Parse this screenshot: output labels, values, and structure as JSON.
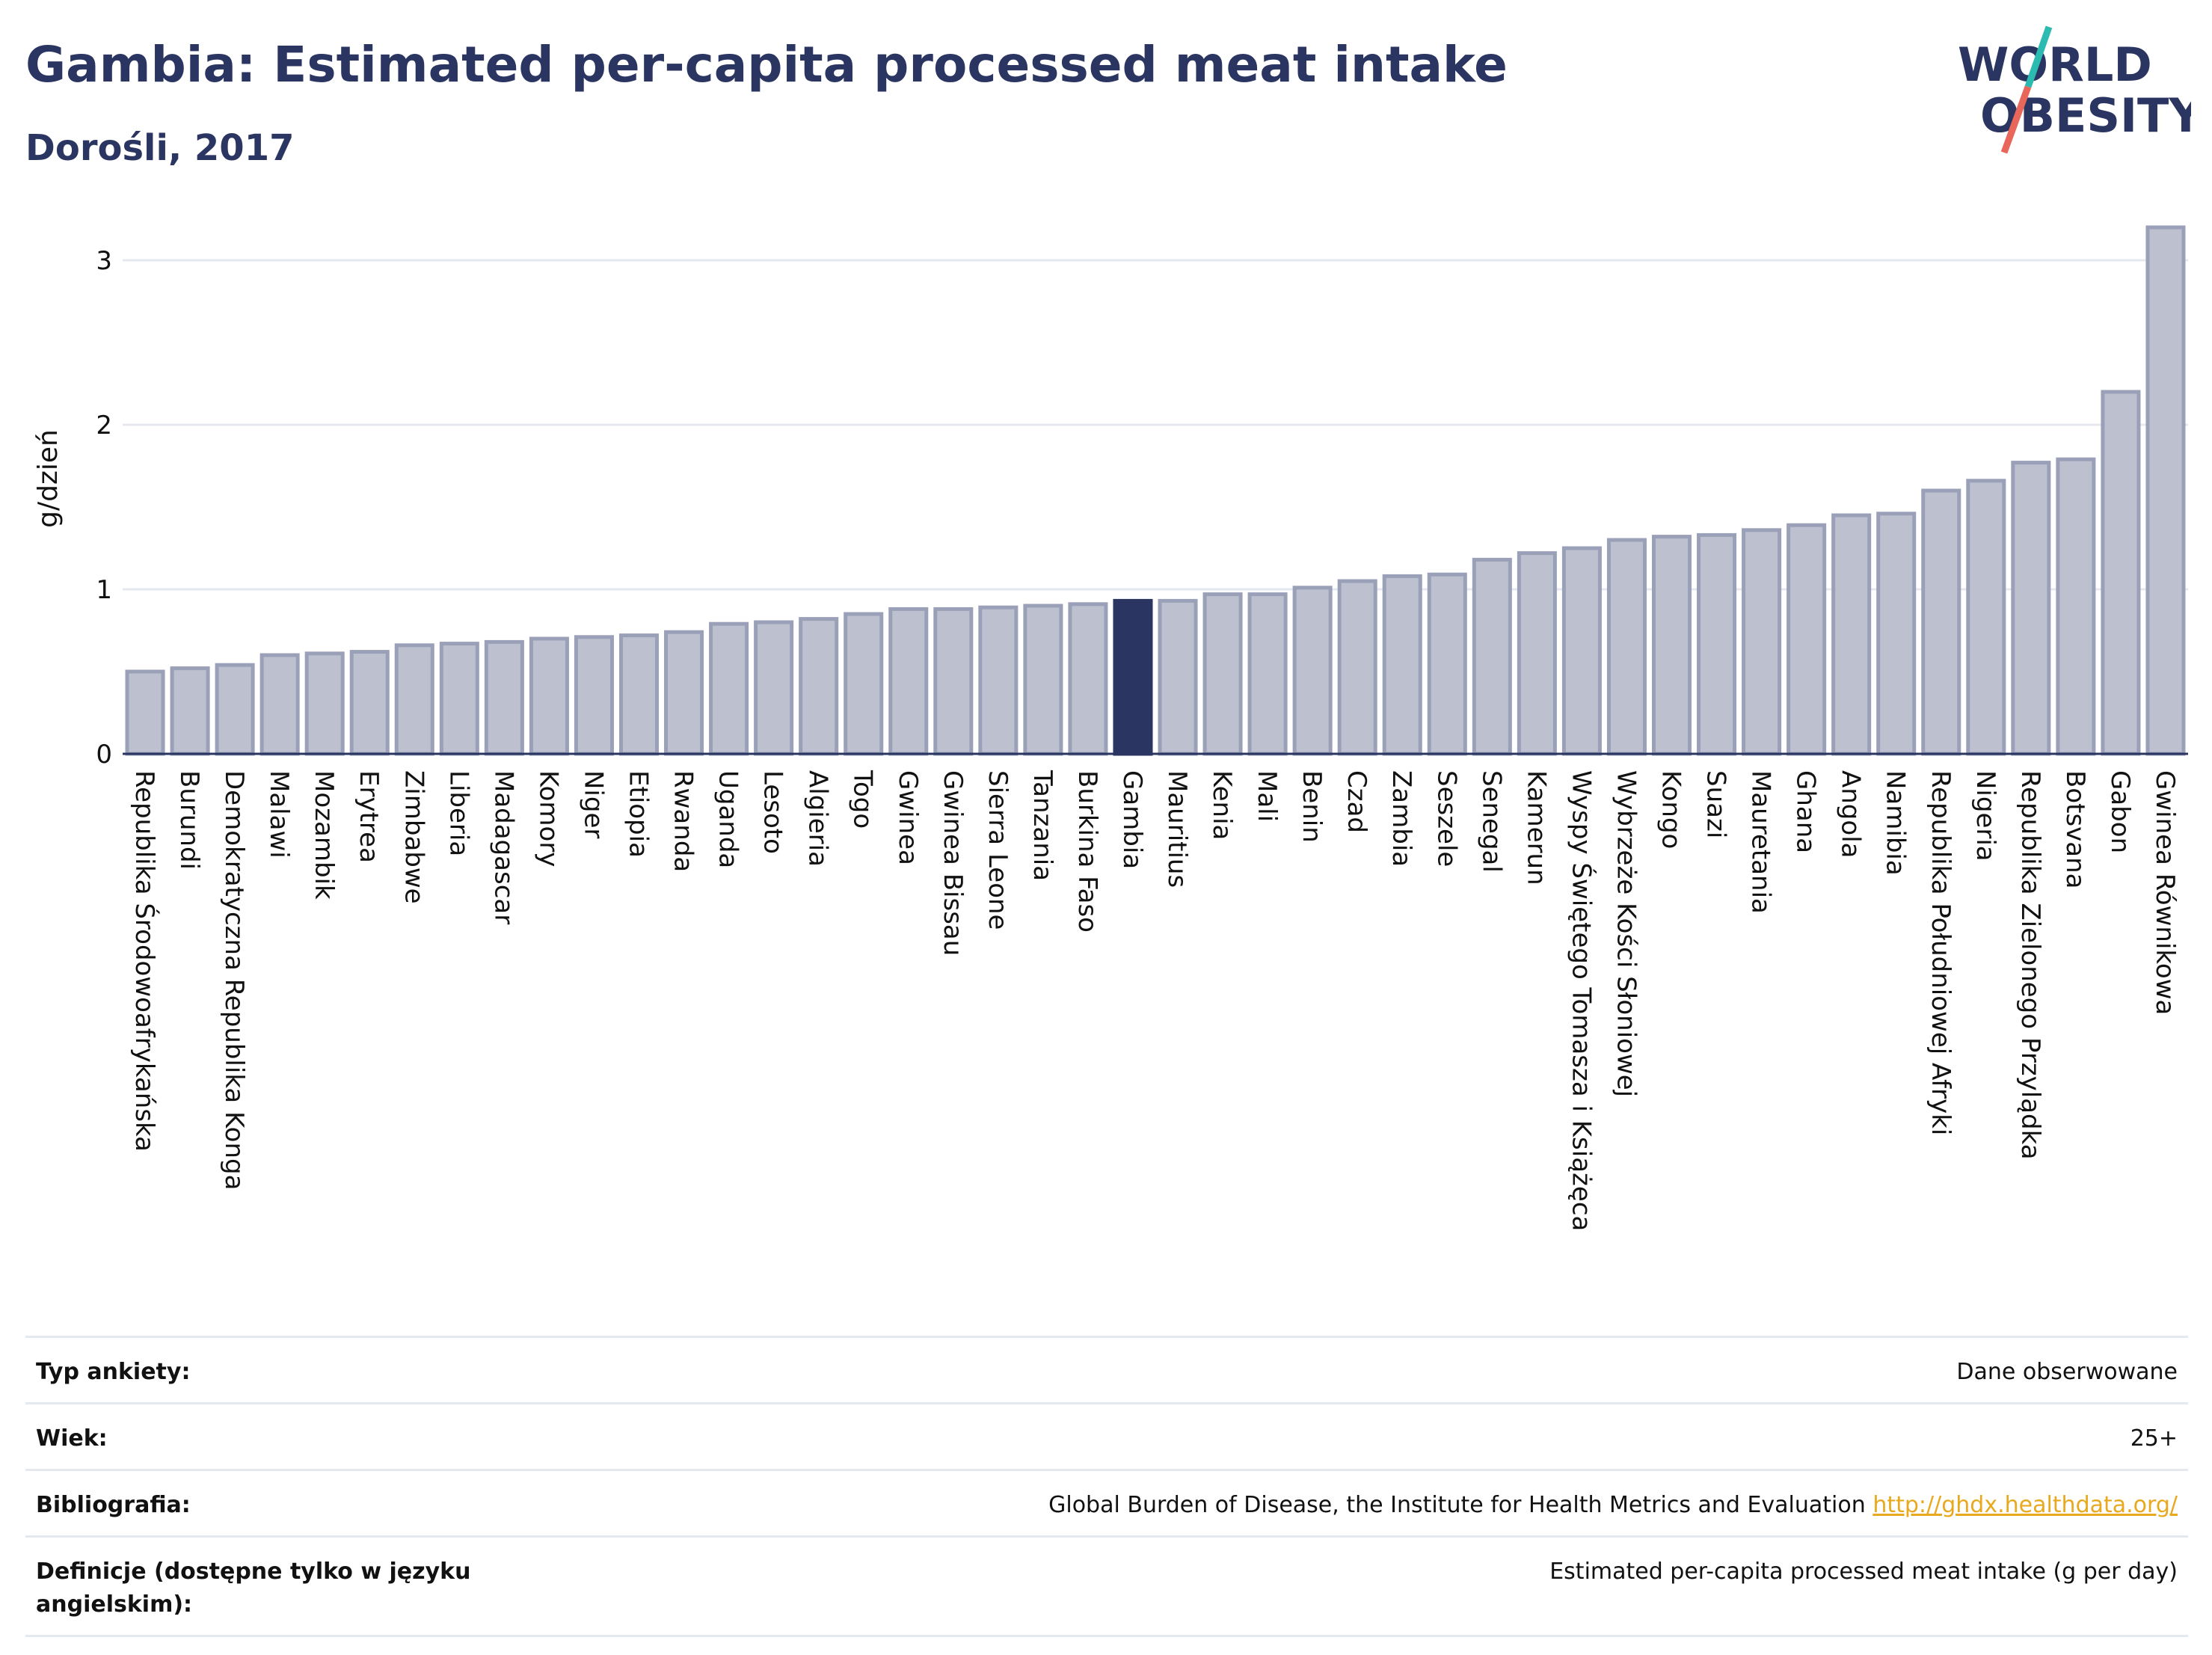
{
  "header": {
    "title": "Gambia: Estimated per-capita processed meat intake",
    "subtitle": "Dorośli, 2017"
  },
  "logo": {
    "line1": "WORLD",
    "line2": "OBESITY",
    "colors": {
      "text": "#2b3561",
      "slash_top": "#2bbbb0",
      "slash_bottom": "#e8665a"
    }
  },
  "colors": {
    "bar": "#bdc1cf",
    "bar_stroke": "#9aa0b8",
    "highlight": "#2b3561",
    "grid": "#e6e8ef",
    "axis": "#2b3561"
  },
  "chart_data": {
    "type": "bar",
    "ylabel": "g/dzień",
    "ylim": [
      0,
      3.2
    ],
    "yticks": [
      0,
      1,
      2,
      3
    ],
    "grid": true,
    "highlight": "Gambia",
    "categories": [
      "Republika Środowoafrykańska",
      "Burundi",
      "Demokratyczna Republika Konga",
      "Malawi",
      "Mozambik",
      "Erytrea",
      "Zimbabwe",
      "Liberia",
      "Madagascar",
      "Komory",
      "Niger",
      "Etiopia",
      "Rwanda",
      "Uganda",
      "Lesoto",
      "Algieria",
      "Togo",
      "Gwinea",
      "Gwinea Bissau",
      "Sierra Leone",
      "Tanzania",
      "Burkina Faso",
      "Gambia",
      "Mauritius",
      "Kenia",
      "Mali",
      "Benin",
      "Czad",
      "Zambia",
      "Seszele",
      "Senegal",
      "Kamerun",
      "Wyspy Świętego Tomasza i Książęca",
      "Wybrzeże Kości Słoniowej",
      "Kongo",
      "Suazi",
      "Mauretania",
      "Ghana",
      "Angola",
      "Namibia",
      "Republika Południowej Afryki",
      "Nigeria",
      "Republika Zielonego Przylądka",
      "Botsvana",
      "Gabon",
      "Gwinea Równikowa"
    ],
    "values": [
      0.5,
      0.52,
      0.54,
      0.6,
      0.61,
      0.62,
      0.66,
      0.67,
      0.68,
      0.7,
      0.71,
      0.72,
      0.74,
      0.79,
      0.8,
      0.82,
      0.85,
      0.88,
      0.88,
      0.89,
      0.9,
      0.91,
      0.93,
      0.93,
      0.97,
      0.97,
      1.01,
      1.05,
      1.08,
      1.09,
      1.18,
      1.22,
      1.25,
      1.3,
      1.32,
      1.33,
      1.36,
      1.39,
      1.45,
      1.46,
      1.6,
      1.66,
      1.77,
      1.79,
      2.2,
      3.2
    ]
  },
  "info_table": {
    "rows": [
      {
        "label": "Typ ankiety:",
        "value": "Dane obserwowane"
      },
      {
        "label": "Wiek:",
        "value": "25+"
      },
      {
        "label": "Bibliografia:",
        "value": "Global Burden of Disease, the Institute for Health Metrics and Evaluation",
        "link": "http://ghdx.healthdata.org/"
      },
      {
        "label": "Definicje (dostępne tylko w języku angielskim):",
        "value": "Estimated per-capita processed meat intake (g per day)"
      }
    ]
  }
}
